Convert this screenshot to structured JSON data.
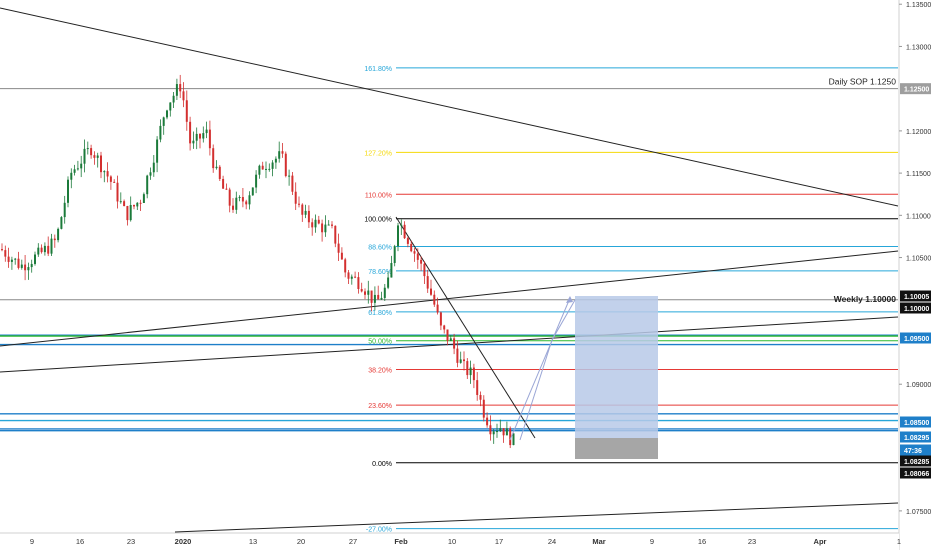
{
  "chart_data": {
    "type": "candlestick",
    "symbol_pair": "EURUSD",
    "price_axis": {
      "ticks": [
        "1.13500",
        "1.13000",
        "1.12000",
        "1.11500",
        "1.11000",
        "1.10500",
        "1.09000",
        "1.07500"
      ],
      "ylim": [
        1.0725,
        1.1355
      ]
    },
    "time_axis": {
      "ticks": [
        "9",
        "16",
        "23",
        "2020",
        "13",
        "20",
        "27",
        "Feb",
        "10",
        "17",
        "24",
        "Mar",
        "9",
        "16",
        "23",
        "Apr",
        "1"
      ]
    },
    "price_badges": [
      {
        "text": "1.12500",
        "kind": "gray"
      },
      {
        "text": "1.10005",
        "kind": "black"
      },
      {
        "text": "1.10000",
        "kind": "black"
      },
      {
        "text": "1.09500",
        "kind": "blue"
      },
      {
        "text": "1.08500",
        "kind": "blue"
      },
      {
        "text": "1.08295",
        "kind": "blue"
      },
      {
        "text": "47:36",
        "kind": "blue"
      },
      {
        "text": "1.08285",
        "kind": "black"
      },
      {
        "text": "1.08066",
        "kind": "black"
      }
    ],
    "level_labels": [
      {
        "text": "Daily SOP 1.1250",
        "price": 1.125
      },
      {
        "text": "Weekly 1.10000",
        "price": 1.1
      }
    ],
    "fibonacci": {
      "price_100": 1.1096,
      "price_0": 1.0807,
      "levels": [
        {
          "label": "161.80%",
          "ratio": 1.618,
          "color": "#26a6d9"
        },
        {
          "label": "127.20%",
          "ratio": 1.272,
          "color": "#f5d90a"
        },
        {
          "label": "110.00%",
          "ratio": 1.1,
          "color": "#e53935"
        },
        {
          "label": "100.00%",
          "ratio": 1.0,
          "color": "#000000"
        },
        {
          "label": "88.60%",
          "ratio": 0.886,
          "color": "#26a6d9"
        },
        {
          "label": "78.60%",
          "ratio": 0.786,
          "color": "#26a6d9"
        },
        {
          "label": "61.80%",
          "ratio": 0.618,
          "color": "#26a6d9"
        },
        {
          "label": "50.00%",
          "ratio": 0.5,
          "color": "#2db82d"
        },
        {
          "label": "38.20%",
          "ratio": 0.382,
          "color": "#e53935"
        },
        {
          "label": "23.60%",
          "ratio": 0.236,
          "color": "#e53935"
        },
        {
          "label": "0.00%",
          "ratio": 0.0,
          "color": "#000000"
        },
        {
          "label": "-27.00%",
          "ratio": -0.27,
          "color": "#26a6d9"
        }
      ]
    },
    "horizontal_levels": [
      {
        "price": 1.125,
        "color": "#888888"
      },
      {
        "price": 1.1,
        "color": "#888888"
      },
      {
        "price": 1.0958,
        "color": "#1e7fc9"
      },
      {
        "price": 1.0957,
        "color": "#2db82d"
      },
      {
        "price": 1.0947,
        "color": "#1e7fc9"
      },
      {
        "price": 1.0865,
        "color": "#1e7fc9"
      },
      {
        "price": 1.0857,
        "color": "#26a6d9"
      },
      {
        "price": 1.0847,
        "color": "#1e7fc9"
      },
      {
        "price": 1.0845,
        "color": "#1e7fc9"
      }
    ],
    "colors": {
      "up": "#26a69a",
      "down": "#ef5350",
      "up_dark": "#1b7a3a",
      "down_dark": "#d32f2f",
      "axis_text": "#333333",
      "rect_fill": "#b7c9e8",
      "rect_gray": "#a6a6a6",
      "projection": "#9aa6d6"
    }
  }
}
